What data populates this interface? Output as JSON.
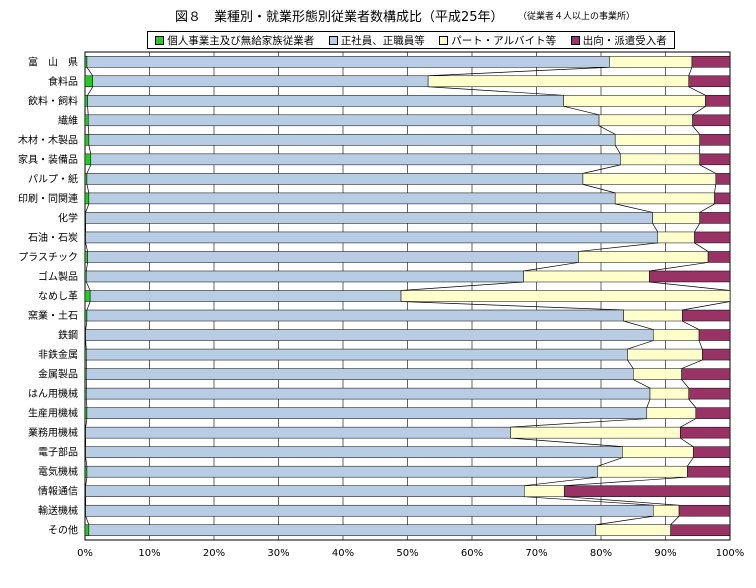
{
  "header": {
    "title": "図８　業種別・就業形態別従業者数構成比（平成25年）",
    "subtitle": "（従業者４人以上の事業所）"
  },
  "colors": {
    "individual": "#22cc22",
    "regular": "#b8cce4",
    "parttime": "#ffffcc",
    "dispatch": "#993366"
  },
  "chart_data": {
    "type": "bar",
    "orientation": "horizontal",
    "stacked": "percent",
    "title": "図８　業種別・就業形態別従業者数構成比（平成25年）",
    "subtitle": "（従業者４人以上の事業所）",
    "xlim": [
      0,
      100
    ],
    "x_ticks": [
      "0%",
      "10%",
      "20%",
      "30%",
      "40%",
      "50%",
      "60%",
      "70%",
      "80%",
      "90%",
      "100%"
    ],
    "grid": true,
    "legend_position": "top",
    "categories": [
      "富　山　県",
      "食料品",
      "飲料・飼料",
      "繊維",
      "木材・木製品",
      "家具・装備品",
      "パルプ・紙",
      "印刷・同関連",
      "化学",
      "石油・石炭",
      "プラスチック",
      "ゴム製品",
      "なめし革",
      "窯業・土石",
      "鉄鋼",
      "非鉄金属",
      "金属製品",
      "はん用機械",
      "生産用機械",
      "業務用機械",
      "電子部品",
      "電気機械",
      "情報通信",
      "輸送機械",
      "その他"
    ],
    "series": [
      {
        "name": "個人事業主及び無給家族従業者",
        "color_key": "individual",
        "values": [
          0.3,
          1.2,
          0.4,
          0.5,
          0.6,
          0.9,
          0.3,
          0.6,
          0.1,
          0.1,
          0.4,
          0.2,
          0.8,
          0.3,
          0.1,
          0.2,
          0.2,
          0.2,
          0.3,
          0.1,
          0.1,
          0.3,
          0.1,
          0.1,
          0.6
        ]
      },
      {
        "name": "正社員、正職員等",
        "color_key": "regular",
        "values": [
          81.0,
          52.0,
          73.8,
          79.2,
          81.6,
          82.1,
          76.9,
          81.6,
          87.9,
          88.7,
          76.1,
          67.8,
          48.2,
          83.2,
          88.0,
          83.9,
          84.8,
          87.4,
          86.8,
          65.9,
          83.2,
          79.2,
          68.0,
          88.0,
          78.6
        ]
      },
      {
        "name": "パート・アルバイト等",
        "color_key": "parttime",
        "values": [
          12.8,
          40.4,
          22.0,
          14.5,
          13.1,
          12.3,
          20.6,
          15.4,
          7.3,
          5.7,
          20.1,
          19.5,
          51.0,
          9.1,
          7.1,
          11.6,
          7.5,
          6.0,
          7.6,
          26.3,
          11.0,
          13.9,
          6.2,
          4.0,
          11.6
        ]
      },
      {
        "name": "出向・派遣受入者",
        "color_key": "dispatch",
        "values": [
          5.9,
          6.4,
          3.8,
          5.8,
          4.7,
          4.7,
          2.2,
          2.4,
          4.7,
          5.5,
          3.4,
          12.5,
          0.0,
          7.4,
          4.8,
          4.3,
          7.5,
          6.4,
          5.3,
          7.7,
          5.7,
          6.6,
          25.7,
          7.9,
          9.2
        ]
      }
    ]
  }
}
